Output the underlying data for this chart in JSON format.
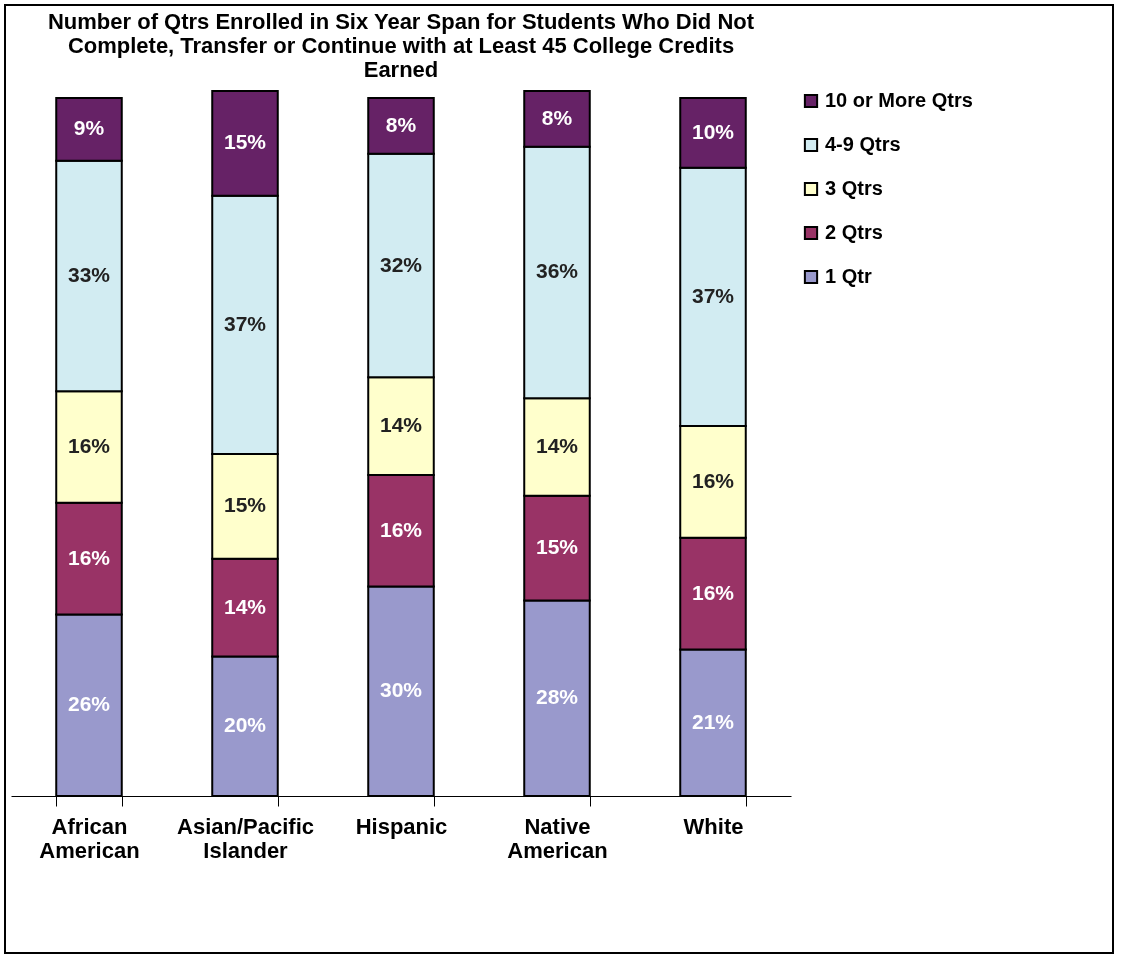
{
  "chart_data": {
    "type": "bar",
    "stacked": true,
    "title": "Number of Qtrs Enrolled in Six Year Span for Students Who Did Not Complete, Transfer or Continue with at Least 45 College Credits Earned",
    "categories": [
      "African American",
      "Asian/Pacific Islander",
      "Hispanic",
      "Native American",
      "White"
    ],
    "series": [
      {
        "name": "1 Qtr",
        "color": "#9999cc",
        "values": [
          26,
          20,
          30,
          28,
          21
        ],
        "value_labels": [
          "26%",
          "20%",
          "30%",
          "28%",
          "21%"
        ]
      },
      {
        "name": "2 Qtrs",
        "color": "#993366",
        "values": [
          16,
          14,
          16,
          15,
          16
        ],
        "value_labels": [
          "16%",
          "14%",
          "16%",
          "15%",
          "16%"
        ]
      },
      {
        "name": "3 Qtrs",
        "color": "#ffffcc",
        "values": [
          16,
          15,
          14,
          14,
          16
        ],
        "value_labels": [
          "16%",
          "15%",
          "14%",
          "14%",
          "16%"
        ]
      },
      {
        "name": "4-9 Qtrs",
        "color": "#d2ecf2",
        "values": [
          33,
          37,
          32,
          36,
          37
        ],
        "value_labels": [
          "33%",
          "37%",
          "32%",
          "36%",
          "37%"
        ]
      },
      {
        "name": "10 or More Qtrs",
        "color": "#662266",
        "values": [
          9,
          15,
          8,
          8,
          10
        ],
        "value_labels": [
          "9%",
          "15%",
          "8%",
          "8%",
          "10%"
        ]
      }
    ],
    "legend": "right"
  }
}
